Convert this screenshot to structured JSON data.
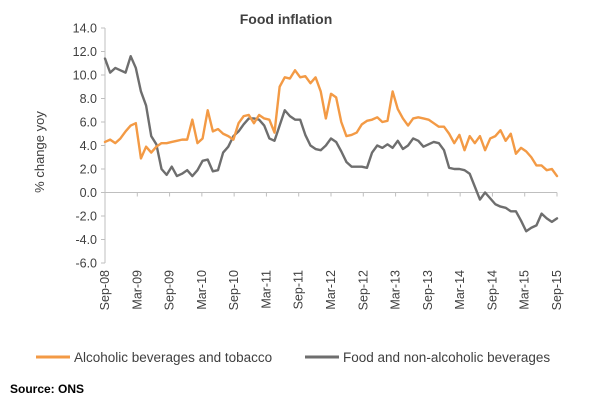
{
  "chart_data": {
    "type": "line",
    "title": "Food inflation",
    "xlabel": "",
    "ylabel": "% change yoy",
    "ylim": [
      -6.0,
      14.0
    ],
    "yticks": [
      "14.0",
      "12.0",
      "10.0",
      "8.0",
      "6.0",
      "4.0",
      "2.0",
      "0.0",
      "-2.0",
      "-4.0",
      "-6.0"
    ],
    "xtick_labels": [
      "Sep-08",
      "Mar-09",
      "Sep-09",
      "Mar-10",
      "Sep-10",
      "Mar-11",
      "Sep-11",
      "Mar-12",
      "Sep-12",
      "Mar-13",
      "Sep-13",
      "Mar-14",
      "Sep-14",
      "Mar-15",
      "Sep-15"
    ],
    "x_start": "Sep-08",
    "x_end": "Sep-15",
    "grid": false,
    "legend_position": "bottom",
    "series": [
      {
        "name": "Alcoholic beverages and tobacco",
        "color": "#f39a45",
        "values": [
          4.3,
          4.5,
          4.2,
          4.6,
          5.2,
          5.7,
          5.9,
          2.9,
          3.9,
          3.4,
          3.9,
          4.2,
          4.2,
          4.3,
          4.4,
          4.5,
          4.5,
          6.2,
          4.2,
          4.6,
          7.0,
          5.2,
          5.4,
          5.0,
          4.8,
          4.5,
          5.9,
          6.5,
          6.6,
          5.9,
          6.6,
          6.3,
          6.2,
          5.1,
          9.0,
          9.8,
          9.7,
          10.4,
          9.8,
          9.9,
          9.3,
          9.8,
          8.6,
          6.3,
          8.4,
          8.1,
          6.0,
          4.8,
          4.9,
          5.1,
          5.8,
          6.1,
          6.2,
          6.4,
          6.0,
          6.1,
          8.6,
          7.1,
          6.3,
          5.7,
          6.3,
          6.4,
          6.3,
          6.2,
          5.9,
          5.6,
          5.6,
          5.0,
          4.2,
          4.9,
          3.6,
          4.8,
          4.2,
          4.8,
          3.6,
          4.6,
          4.8,
          5.3,
          4.4,
          5.0,
          3.3,
          3.8,
          3.5,
          3.0,
          2.3,
          2.3,
          1.9,
          2.0,
          1.4
        ]
      },
      {
        "name": "Food and non-alcoholic beverages",
        "color": "#6e6e6e",
        "values": [
          11.4,
          10.2,
          10.6,
          10.4,
          10.2,
          11.6,
          10.6,
          8.6,
          7.4,
          4.8,
          4.1,
          2.0,
          1.5,
          2.2,
          1.4,
          1.6,
          1.9,
          1.4,
          1.9,
          2.7,
          2.8,
          1.8,
          1.9,
          3.4,
          3.9,
          4.8,
          5.2,
          5.8,
          6.3,
          6.3,
          6.2,
          5.7,
          4.6,
          4.4,
          5.7,
          7.0,
          6.5,
          6.2,
          6.2,
          4.9,
          4.0,
          3.7,
          3.6,
          4.0,
          4.6,
          4.3,
          3.5,
          2.6,
          2.2,
          2.2,
          2.2,
          2.1,
          3.4,
          4.0,
          3.8,
          4.1,
          3.8,
          4.4,
          3.7,
          4.0,
          4.6,
          4.4,
          3.9,
          4.1,
          4.3,
          4.2,
          3.6,
          2.1,
          2.0,
          2.0,
          1.9,
          1.6,
          0.5,
          -0.6,
          0.0,
          -0.5,
          -1.0,
          -1.2,
          -1.3,
          -1.6,
          -1.6,
          -2.4,
          -3.3,
          -3.0,
          -2.8,
          -1.8,
          -2.2,
          -2.5,
          -2.2
        ]
      }
    ]
  },
  "footer": {
    "source": "Source: ONS"
  }
}
